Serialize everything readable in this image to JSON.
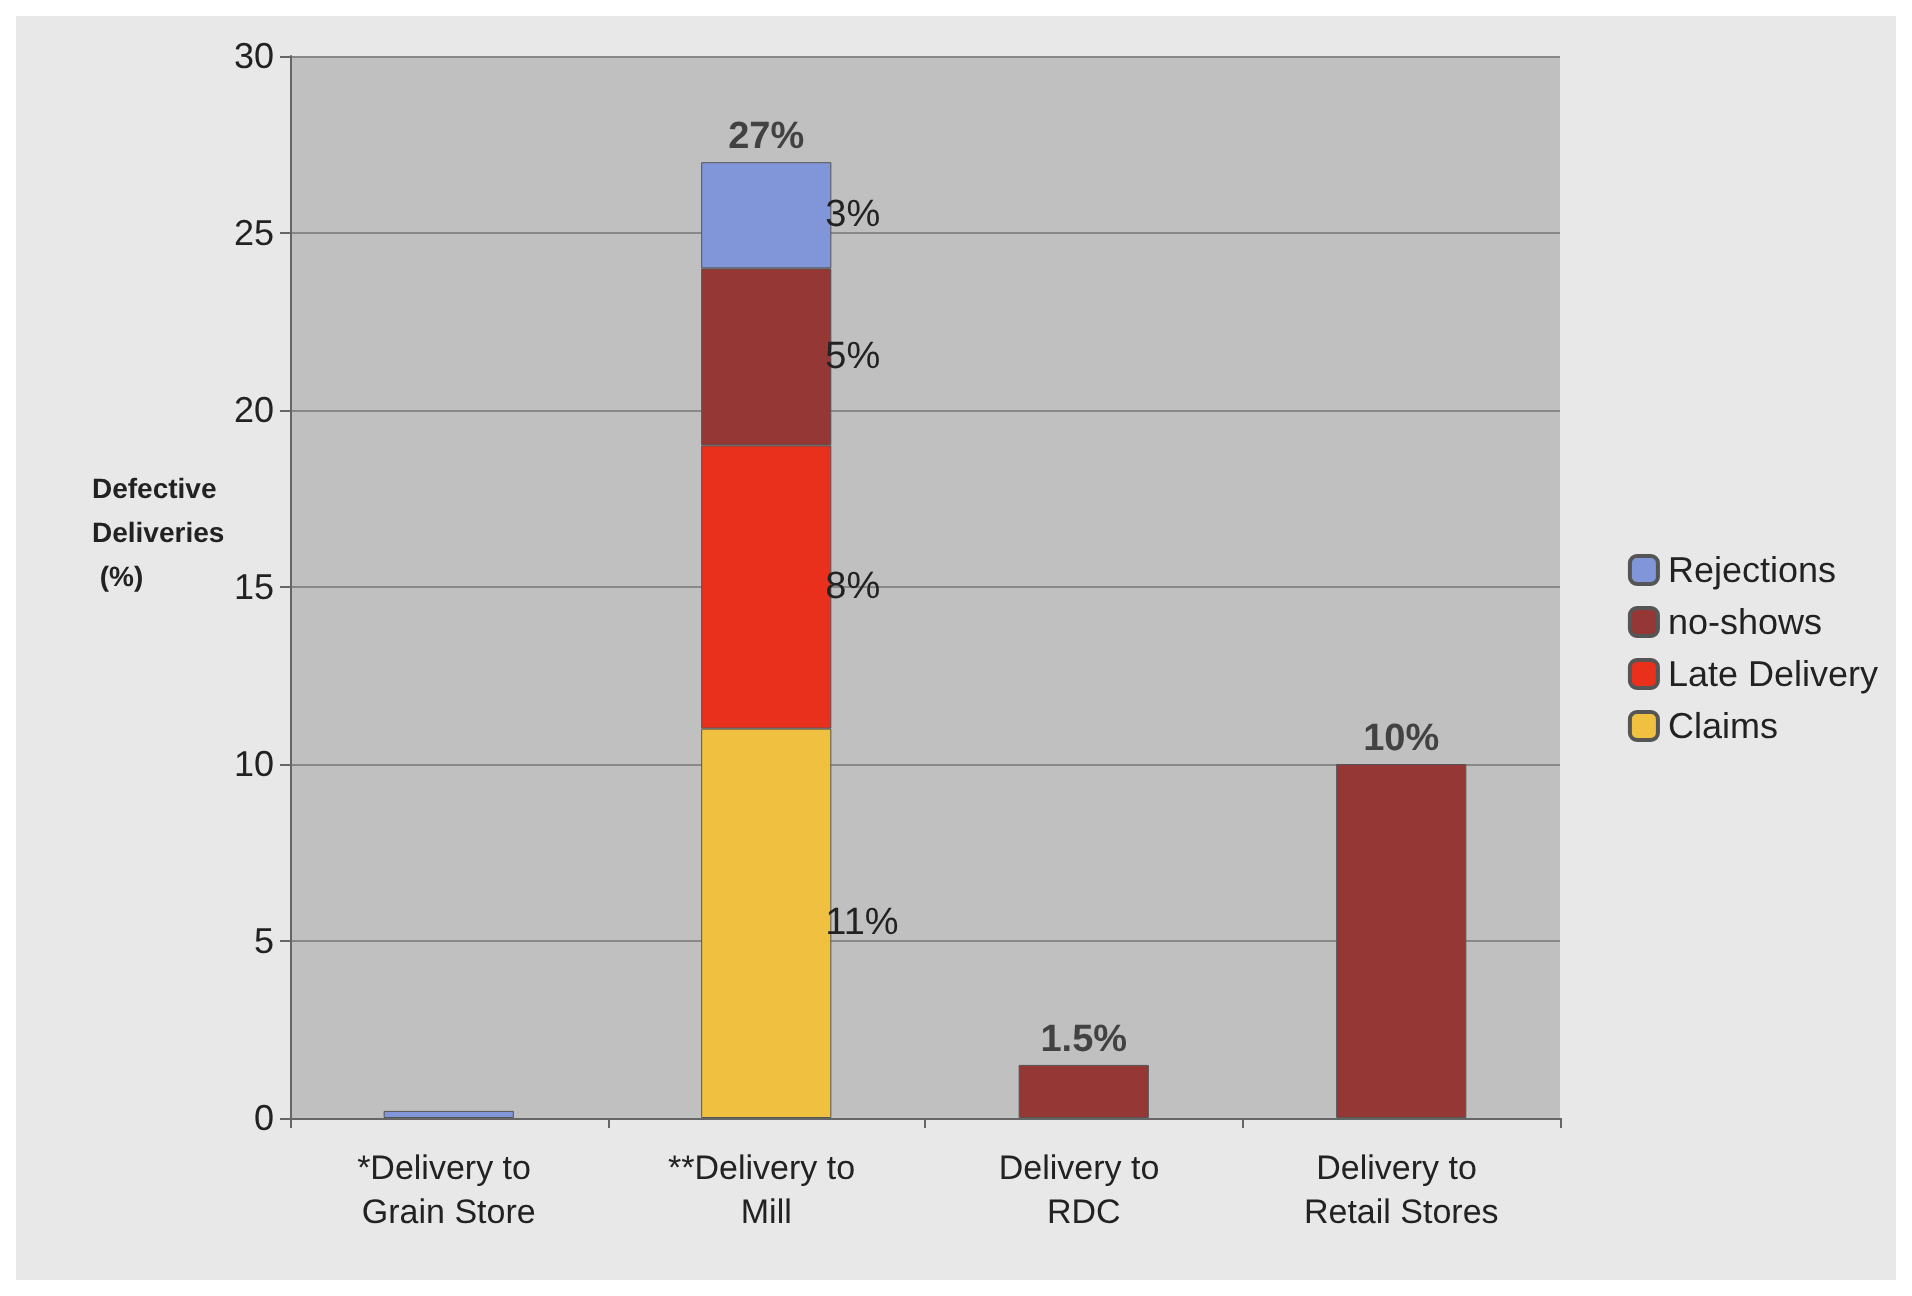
{
  "chart_data": {
    "type": "bar",
    "ylabel": "Defective Deliveries (%)",
    "categories": [
      "*Delivery to Grain Store",
      "**Delivery to Mill",
      "Delivery to RDC",
      "Delivery to Retail Stores"
    ],
    "stacked": true,
    "series": [
      {
        "name": "Claims",
        "color": "#f0c040",
        "values": [
          null,
          11,
          null,
          null
        ],
        "value_labels": [
          null,
          "11%",
          null,
          null
        ]
      },
      {
        "name": "Late Delivery",
        "color": "#e8301c",
        "values": [
          null,
          8,
          null,
          null
        ],
        "value_labels": [
          null,
          "8%",
          null,
          null
        ]
      },
      {
        "name": "no-shows",
        "color": "#953735",
        "values": [
          null,
          5,
          1.5,
          10
        ],
        "value_labels": [
          null,
          "5%",
          null,
          null
        ]
      },
      {
        "name": "Rejections",
        "color": "#8096d8",
        "values": [
          0.2,
          3,
          null,
          null
        ],
        "value_labels": [
          null,
          "3%",
          null,
          null
        ]
      }
    ],
    "totals": [
      null,
      "27%",
      "1.5%",
      "10%"
    ],
    "ylim": [
      0,
      30
    ],
    "yticks": [
      0,
      5,
      10,
      15,
      20,
      25,
      30
    ],
    "grid": "y",
    "legend": "right"
  }
}
